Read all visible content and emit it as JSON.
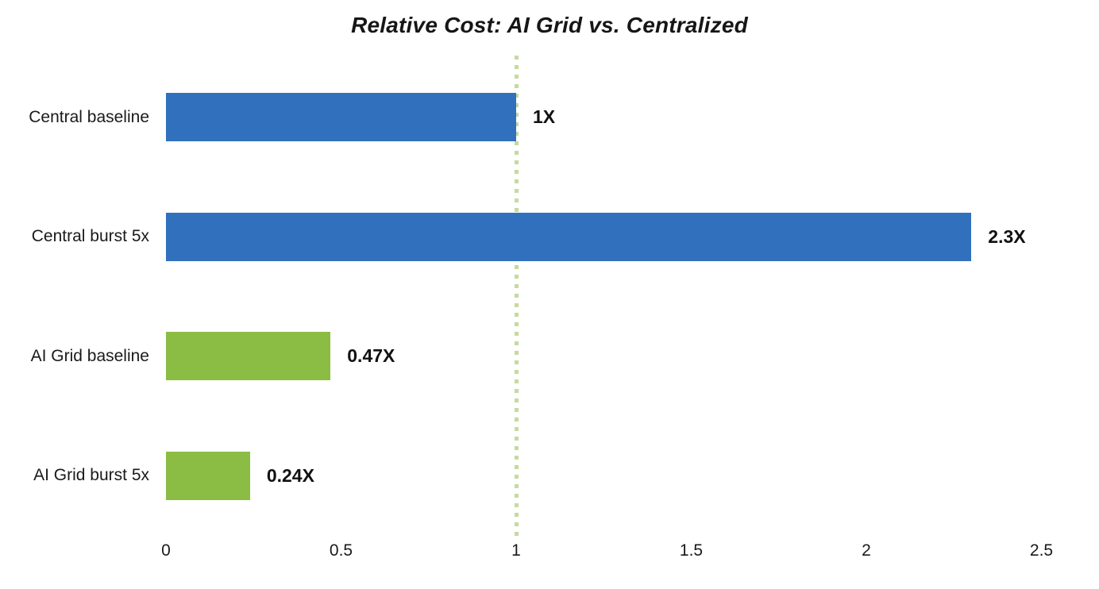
{
  "title": "Relative Cost: AI Grid vs. Centralized",
  "colors": {
    "central_blue": "#3170bd",
    "ai_grid_green": "#8bbc44",
    "reference_line": "#c3dc9c",
    "text": "#1a1a1a"
  },
  "chart_data": {
    "type": "bar",
    "orientation": "horizontal",
    "title": "Relative Cost: AI Grid vs. Centralized",
    "categories": [
      "Central baseline",
      "Central burst 5x",
      "AI Grid baseline",
      "AI Grid burst 5x"
    ],
    "values": [
      1,
      2.3,
      0.47,
      0.24
    ],
    "value_labels": [
      "1X",
      "2.3X",
      "0.47X",
      "0.24X"
    ],
    "bar_colors": [
      "#3170bd",
      "#3170bd",
      "#8bbc44",
      "#8bbc44"
    ],
    "xlabel": "",
    "ylabel": "",
    "xlim": [
      0,
      2.5
    ],
    "x_tick_values": [
      0,
      0.5,
      1,
      1.5,
      2,
      2.5
    ],
    "x_tick_labels": [
      "0",
      "0.5",
      "1",
      "1.5",
      "2",
      "2.5"
    ],
    "reference_line_x": 1,
    "grid": false,
    "legend": false
  }
}
